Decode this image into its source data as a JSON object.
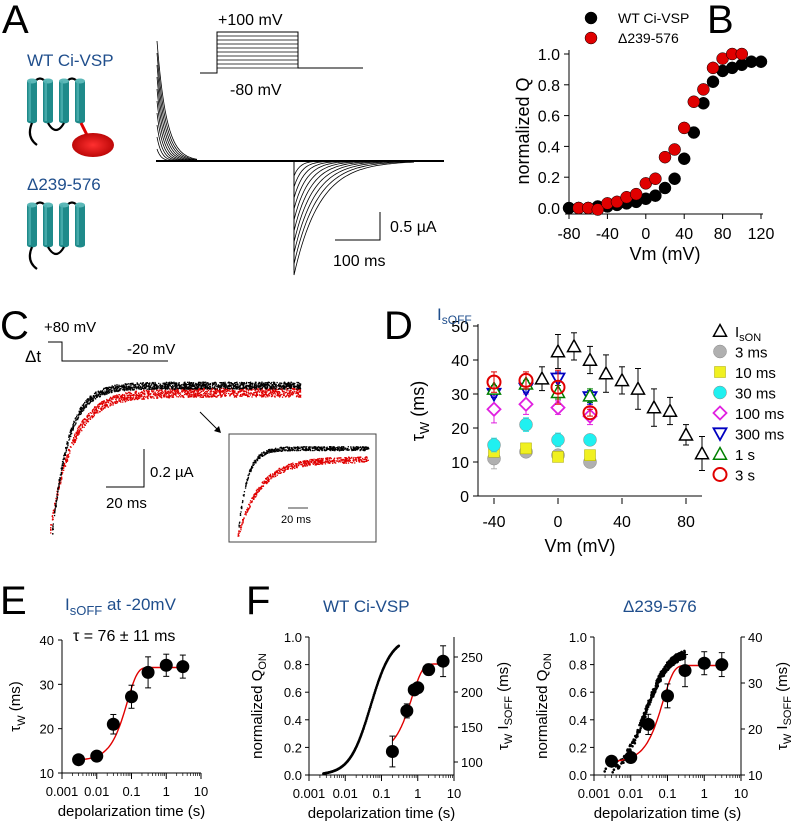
{
  "panels": {
    "A": {
      "letter": "A",
      "constructs": [
        {
          "name": "WT Ci-VSP",
          "has_phosphatase": true
        },
        {
          "name": "Δ239-576",
          "has_phosphatase": false
        }
      ],
      "protocol": {
        "top": "+100 mV",
        "bottom": "-80 mV"
      },
      "scalebar": {
        "y": "0.5 µA",
        "x": "100 ms"
      }
    },
    "C": {
      "letter": "C",
      "protocol": {
        "pre": "+80 mV",
        "test": "-20 mV",
        "dt": "Δt"
      },
      "scalebar": {
        "y": "0.2 µA",
        "x": "20 ms"
      },
      "inset_scalebar": "20 ms"
    },
    "E_title": {
      "main": "I",
      "sub": "sOFF",
      "rest": " at -20mV"
    },
    "E_annotation": "τ = 76 ± 11 ms",
    "F_titles": [
      "WT Ci-VSP",
      "Δ239-576"
    ],
    "letters": {
      "B": "B",
      "D": "D",
      "E": "E",
      "F": "F"
    }
  },
  "colors": {
    "teal": "#1f8a8a",
    "red": "#e00000",
    "blue_text": "#1f4e8c",
    "gray": "#b0b0b0",
    "yellow": "#f0f020",
    "cyan": "#20f0f0",
    "magenta": "#e020e0",
    "navy": "#0000c0",
    "green": "#008000"
  },
  "chart_data": [
    {
      "id": "B",
      "type": "scatter",
      "title": "",
      "xlabel": "Vm (mV)",
      "ylabel": "normalized Q",
      "xlim": [
        -80,
        120
      ],
      "ylim": [
        0,
        1.0
      ],
      "xticks": [
        -80,
        -40,
        0,
        40,
        80,
        120
      ],
      "yticks": [
        0.0,
        0.2,
        0.4,
        0.6,
        0.8,
        1.0
      ],
      "yticklabels": [
        "0.0",
        "0.2",
        "0.4",
        "0.6",
        "0.8",
        "1.0"
      ],
      "legend_position": "top",
      "series": [
        {
          "name": "WT Ci-VSP",
          "color": "#000000",
          "x": [
            -80,
            -70,
            -60,
            -50,
            -40,
            -30,
            -20,
            -10,
            0,
            10,
            20,
            30,
            40,
            50,
            60,
            70,
            80,
            90,
            100,
            110,
            120
          ],
          "y": [
            0.0,
            0.0,
            0.0,
            0.01,
            0.01,
            0.02,
            0.03,
            0.04,
            0.06,
            0.08,
            0.13,
            0.19,
            0.32,
            0.49,
            0.68,
            0.82,
            0.89,
            0.91,
            0.93,
            0.95,
            0.95
          ]
        },
        {
          "name": "Δ239-576",
          "color": "#e00000",
          "x": [
            -70,
            -60,
            -50,
            -40,
            -30,
            -20,
            -10,
            0,
            10,
            20,
            30,
            40,
            50,
            60,
            70,
            80,
            90,
            100
          ],
          "y": [
            0.0,
            0.0,
            -0.01,
            0.03,
            0.04,
            0.07,
            0.09,
            0.16,
            0.19,
            0.33,
            0.38,
            0.52,
            0.69,
            0.77,
            0.91,
            0.97,
            1.0,
            1.0
          ]
        }
      ]
    },
    {
      "id": "D",
      "type": "scatter",
      "title": "IsOFF",
      "xlabel": "Vm (mV)",
      "ylabel": "τW (ms)",
      "xlim": [
        -50,
        90
      ],
      "ylim": [
        0,
        50
      ],
      "xticks": [
        -40,
        0,
        40,
        80
      ],
      "yticks": [
        0,
        10,
        20,
        30,
        40,
        50
      ],
      "legend_position": "right",
      "series": [
        {
          "name": "IsON",
          "marker": "triangle-open",
          "color": "#000000",
          "x": [
            -10,
            0,
            10,
            20,
            30,
            40,
            50,
            60,
            70,
            80,
            90
          ],
          "y": [
            34.5,
            42.5,
            44,
            40,
            36,
            34,
            31.5,
            26,
            25,
            18,
            12.5
          ],
          "err": [
            3.5,
            5,
            4,
            4,
            5.5,
            4,
            6,
            5.5,
            4,
            3,
            5
          ]
        },
        {
          "name": "3 ms",
          "marker": "circle-filled",
          "color": "#b0b0b0",
          "x": [
            -40,
            -20,
            0,
            20
          ],
          "y": [
            11,
            13,
            12,
            10
          ],
          "err": [
            3,
            1,
            1.5,
            1.5
          ]
        },
        {
          "name": "10 ms",
          "marker": "square-filled",
          "color": "#f0f020",
          "x": [
            -40,
            -20,
            0,
            20
          ],
          "y": [
            13,
            14,
            11.5,
            12
          ],
          "err": [
            1,
            1,
            1,
            1
          ]
        },
        {
          "name": "30 ms",
          "marker": "circle-filled",
          "color": "#20f0f0",
          "x": [
            -40,
            -20,
            0,
            20
          ],
          "y": [
            15,
            21,
            16.5,
            16.5
          ],
          "err": [
            2,
            2,
            2,
            1
          ]
        },
        {
          "name": "100 ms",
          "marker": "diamond-open",
          "color": "#e020e0",
          "x": [
            -40,
            -20,
            0,
            20
          ],
          "y": [
            25.5,
            27,
            26,
            23.5
          ],
          "err": [
            4,
            3,
            2,
            2.5
          ]
        },
        {
          "name": "300 ms",
          "marker": "triangle-down-open",
          "color": "#0000c0",
          "x": [
            -40,
            -20,
            0,
            20
          ],
          "y": [
            30,
            31.5,
            34.5,
            29
          ],
          "err": [
            1,
            1,
            2,
            2
          ]
        },
        {
          "name": "1 s",
          "marker": "triangle-open",
          "color": "#008000",
          "x": [
            -40,
            -20,
            0,
            20
          ],
          "y": [
            31.5,
            33,
            30.5,
            29.5
          ],
          "err": [
            1,
            1,
            2,
            2
          ]
        },
        {
          "name": "3 s",
          "marker": "circle-open",
          "color": "#e00000",
          "x": [
            -40,
            -20,
            0,
            20
          ],
          "y": [
            33.5,
            34,
            32,
            24.5
          ],
          "err": [
            3,
            2.5,
            5,
            1
          ]
        }
      ]
    },
    {
      "id": "E",
      "type": "scatter",
      "title": "IsOFF at -20mV",
      "annotation": "τ = 76 ± 11 ms",
      "xlabel": "depolarization time (s)",
      "ylabel": "τW (ms)",
      "xscale": "log",
      "xlim": [
        0.001,
        10
      ],
      "ylim": [
        10,
        40
      ],
      "xticks": [
        0.001,
        0.01,
        0.1,
        1,
        10
      ],
      "xticklabels": [
        "0.001",
        "0.01",
        "0.1",
        "1",
        "10"
      ],
      "yticks": [
        10,
        20,
        30,
        40
      ],
      "series": [
        {
          "name": "data",
          "color": "#000000",
          "x": [
            0.003,
            0.01,
            0.03,
            0.1,
            0.3,
            1,
            3
          ],
          "y": [
            13,
            13.8,
            21,
            27.2,
            32.7,
            34.3,
            34
          ],
          "err": [
            0.5,
            0.5,
            2.2,
            2.6,
            3.5,
            2.5,
            2.6
          ]
        },
        {
          "name": "fit",
          "type": "line",
          "color": "#e00000",
          "tau_ms": 76,
          "ymin": 12.8,
          "ymax": 33.8,
          "xrange": [
            0.003,
            3
          ]
        }
      ]
    },
    {
      "id": "F-WT",
      "type": "scatter",
      "title": "WT Ci-VSP",
      "xlabel": "depolarization time (s)",
      "ylabel": "normalized QON",
      "ylabel_right": "τW IsOFF (ms)",
      "xscale": "log",
      "xlim": [
        0.001,
        10
      ],
      "ylim": [
        0,
        1.0
      ],
      "ylim_right": [
        80,
        270
      ],
      "xticks": [
        0.001,
        0.01,
        0.1,
        1,
        10
      ],
      "xticklabels": [
        "0.001",
        "0.01",
        "0.1",
        "1",
        "10"
      ],
      "yticks": [
        0.0,
        0.2,
        0.4,
        0.6,
        0.8,
        1.0
      ],
      "yticklabels": [
        "0.0",
        "0.2",
        "0.4",
        "0.6",
        "0.8",
        "1.0"
      ],
      "yticks_right": [
        100,
        150,
        200,
        250
      ],
      "series": [
        {
          "name": "QON",
          "type": "line-dotted",
          "color": "#000000",
          "axis": "left",
          "midpoint_s": 0.05,
          "x_start": 0.0025,
          "x_end": 0.3
        },
        {
          "name": "τW IsOFF",
          "color": "#000000",
          "axis": "right",
          "x": [
            0.2,
            0.5,
            0.8,
            1.0,
            2.0,
            5.0
          ],
          "y": [
            115,
            173,
            203,
            206,
            232,
            244
          ],
          "err": [
            22,
            10,
            6,
            6,
            8,
            22
          ]
        },
        {
          "name": "fit",
          "type": "line",
          "color": "#e00000",
          "axis": "right",
          "ymin": 100,
          "ymax": 239,
          "xrange": [
            0.2,
            5
          ]
        }
      ]
    },
    {
      "id": "F-Delta",
      "type": "scatter",
      "title": "Δ239-576",
      "xlabel": "depolarization time (s)",
      "ylabel": "normalized QON",
      "ylabel_right": "τW IsOFF (ms)",
      "xscale": "log",
      "xlim": [
        0.001,
        10
      ],
      "ylim": [
        0,
        1.0
      ],
      "ylim_right": [
        10,
        40
      ],
      "xticks": [
        0.001,
        0.01,
        0.1,
        1,
        10
      ],
      "xticklabels": [
        "0.001",
        "0.01",
        "0.1",
        "1",
        "10"
      ],
      "yticks": [
        0.0,
        0.2,
        0.4,
        0.6,
        0.8,
        1.0
      ],
      "yticklabels": [
        "0.0",
        "0.2",
        "0.4",
        "0.6",
        "0.8",
        "1.0"
      ],
      "yticks_right": [
        10,
        20,
        30,
        40
      ],
      "series": [
        {
          "name": "QON",
          "type": "scatter-dots",
          "color": "#000000",
          "axis": "left",
          "midpoint_s": 0.025,
          "x_start": 0.0017,
          "x_end": 0.3,
          "plateau": 0.9
        },
        {
          "name": "τW IsOFF",
          "color": "#000000",
          "axis": "right",
          "x": [
            0.003,
            0.01,
            0.03,
            0.1,
            0.3,
            1,
            3
          ],
          "y": [
            13,
            13.8,
            21,
            27.2,
            32.7,
            34.3,
            34
          ],
          "err": [
            0.5,
            0.5,
            2.2,
            2.6,
            3.5,
            2.5,
            2.6
          ]
        },
        {
          "name": "fit",
          "type": "line",
          "color": "#e00000",
          "axis": "right",
          "tau_ms": 76,
          "ymin": 12.8,
          "ymax": 33.8,
          "xrange": [
            0.003,
            3
          ]
        }
      ]
    }
  ]
}
